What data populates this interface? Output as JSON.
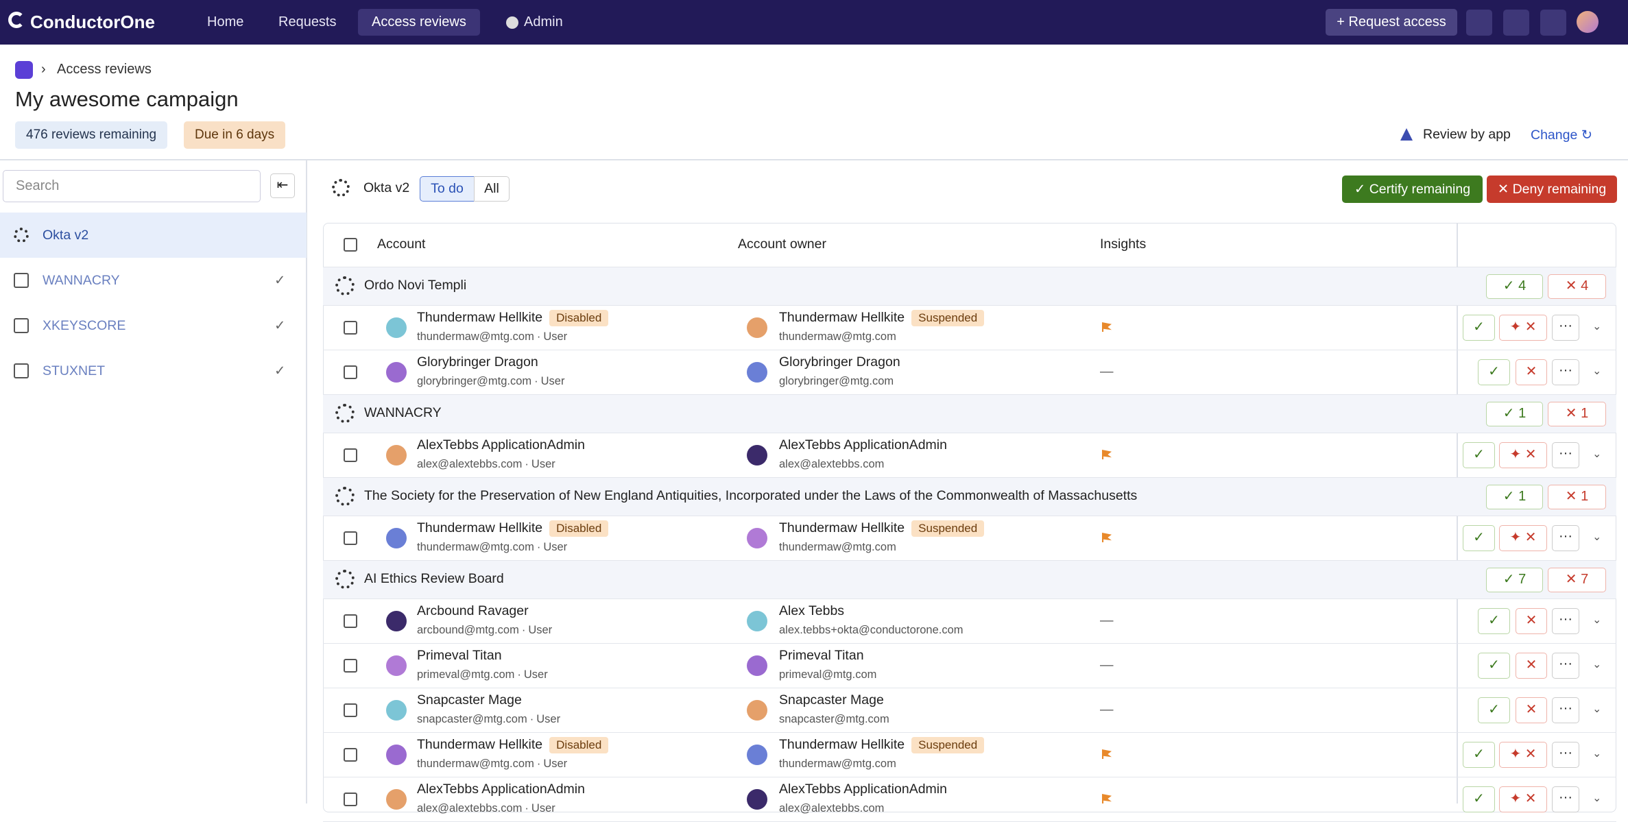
{
  "nav": {
    "brand": "ConductorOne",
    "items": [
      "Home",
      "Requests",
      "Access reviews",
      "Admin"
    ],
    "request_access": "Request access"
  },
  "breadcrumb": "Access reviews",
  "title": "My awesome campaign",
  "badges": [
    "476 reviews remaining",
    "Due in 6 days"
  ],
  "review_by": "Review by app",
  "change": "Change",
  "sidebar": {
    "search_placeholder": "Search",
    "apps": [
      "Okta v2",
      "WANNACRY",
      "XKEYSCORE",
      "STUXNET"
    ]
  },
  "toolbar": {
    "app": "Okta v2",
    "tabs": [
      "To do",
      "All"
    ],
    "certify": "Certify remaining",
    "deny": "Deny remaining"
  },
  "table": {
    "columns": [
      "Account",
      "Account owner",
      "Insights"
    ],
    "groups": [
      {
        "name": "Ordo Novi Templi",
        "approve": 4,
        "deny": 4,
        "rows": [
          {
            "account": "Thundermaw Hellkite",
            "account_status": "Disabled",
            "email": "thundermaw@mtg.com",
            "kind": "User",
            "owner": "Thundermaw Hellkite",
            "owner_status": "Suspended",
            "owner_email": "thundermaw@mtg.com",
            "flagged": true
          },
          {
            "account": "Glorybringer Dragon",
            "email": "glorybringer@mtg.com",
            "kind": "User",
            "owner": "Glorybringer Dragon",
            "owner_email": "glorybringer@mtg.com",
            "insight": "—"
          }
        ]
      },
      {
        "name": "WANNACRY",
        "approve": 1,
        "deny": 1,
        "rows": [
          {
            "account": "AlexTebbs ApplicationAdmin",
            "email": "alex@alextebbs.com",
            "kind": "User",
            "owner": "AlexTebbs ApplicationAdmin",
            "owner_email": "alex@alextebbs.com",
            "flagged": true
          }
        ]
      },
      {
        "name": "The Society for the Preservation of New England Antiquities, Incorporated under the Laws of the Commonwealth of Massachusetts",
        "approve": 1,
        "deny": 1,
        "rows": [
          {
            "account": "Thundermaw Hellkite",
            "account_status": "Disabled",
            "email": "thundermaw@mtg.com",
            "kind": "User",
            "owner": "Thundermaw Hellkite",
            "owner_status": "Suspended",
            "owner_email": "thundermaw@mtg.com",
            "flagged": true
          }
        ]
      },
      {
        "name": "AI Ethics Review Board",
        "approve": 7,
        "deny": 7,
        "rows": [
          {
            "account": "Arcbound Ravager",
            "email": "arcbound@mtg.com",
            "kind": "User",
            "owner": "Alex Tebbs",
            "owner_email": "alex.tebbs+okta@conductorone.com",
            "insight": "—"
          },
          {
            "account": "Primeval Titan",
            "email": "primeval@mtg.com",
            "kind": "User",
            "owner": "Primeval Titan",
            "owner_email": "primeval@mtg.com",
            "insight": "—"
          },
          {
            "account": "Snapcaster Mage",
            "email": "snapcaster@mtg.com",
            "kind": "User",
            "owner": "Snapcaster Mage",
            "owner_email": "snapcaster@mtg.com",
            "insight": "—"
          },
          {
            "account": "Thundermaw Hellkite",
            "account_status": "Disabled",
            "email": "thundermaw@mtg.com",
            "kind": "User",
            "owner": "Thundermaw Hellkite",
            "owner_status": "Suspended",
            "owner_email": "thundermaw@mtg.com",
            "flagged": true
          },
          {
            "account": "AlexTebbs ApplicationAdmin",
            "email": "alex@alextebbs.com",
            "kind": "User",
            "owner": "AlexTebbs ApplicationAdmin",
            "owner_email": "alex@alextebbs.com",
            "flagged": true
          }
        ]
      }
    ]
  }
}
